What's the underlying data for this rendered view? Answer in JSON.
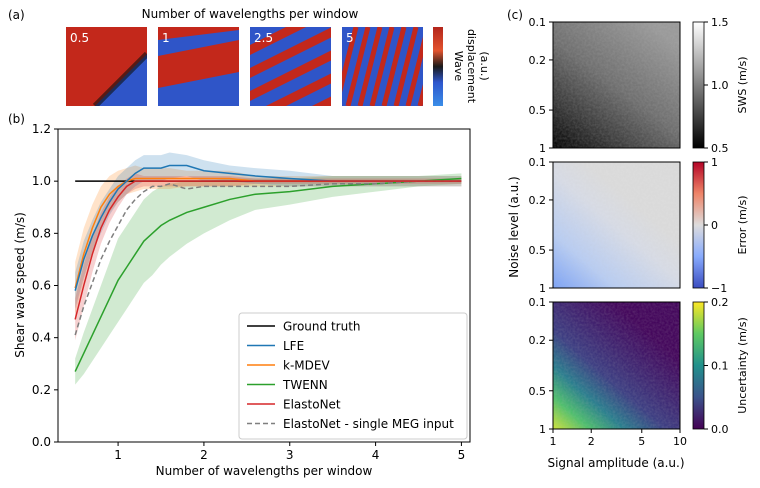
{
  "panel_labels": [
    "(a)",
    "(b)",
    "(c)"
  ],
  "colors": {
    "ground_truth": "#000000",
    "LFE": "#1f77b4",
    "k-MDEV": "#ff7f0e",
    "TWENN": "#2ca02c",
    "ElastoNet": "#d62728",
    "ElastoNet_single": "#7f7f7f",
    "wave_red": "#cc2a1c",
    "wave_blue": "#2f55c8"
  },
  "chart_data": [
    {
      "panel": "(a)",
      "type": "image-row",
      "title": "Number of wavelengths per window",
      "tiles": [
        "0.5",
        "1",
        "2.5",
        "5"
      ],
      "colorbar_label": [
        "Wave",
        "displacement",
        "(a.u.)"
      ]
    },
    {
      "panel": "(b)",
      "type": "line",
      "title": "",
      "xlabel": "Number of wavelengths per window",
      "ylabel": "Shear wave speed (m/s)",
      "xlim": [
        0.3,
        5.1
      ],
      "ylim": [
        0.0,
        1.2
      ],
      "xticks": [
        1,
        2,
        3,
        4,
        5
      ],
      "xtick_labels": [
        "1",
        "2",
        "3",
        "4",
        "5"
      ],
      "yticks": [
        0.0,
        0.2,
        0.4,
        0.6,
        0.8,
        1.0,
        1.2
      ],
      "ytick_labels": [
        "0.0",
        "0.2",
        "0.4",
        "0.6",
        "0.8",
        "1.0",
        "1.2"
      ],
      "x": [
        0.5,
        0.6,
        0.7,
        0.8,
        0.9,
        1.0,
        1.1,
        1.2,
        1.3,
        1.4,
        1.5,
        1.6,
        1.8,
        2.0,
        2.3,
        2.6,
        3.0,
        3.5,
        4.0,
        4.5,
        5.0
      ],
      "series": [
        {
          "key": "ground_truth",
          "name": "Ground truth",
          "style": "solid",
          "values": [
            1.0,
            1.0,
            1.0,
            1.0,
            1.0,
            1.0,
            1.0,
            1.0,
            1.0,
            1.0,
            1.0,
            1.0,
            1.0,
            1.0,
            1.0,
            1.0,
            1.0,
            1.0,
            1.0,
            1.0,
            1.0
          ]
        },
        {
          "key": "LFE",
          "name": "LFE",
          "style": "solid",
          "values": [
            0.58,
            0.7,
            0.79,
            0.86,
            0.92,
            0.97,
            1.0,
            1.03,
            1.05,
            1.05,
            1.05,
            1.06,
            1.06,
            1.04,
            1.03,
            1.02,
            1.01,
            1.0,
            1.0,
            1.0,
            1.0
          ],
          "band": [
            0.07,
            0.07,
            0.06,
            0.06,
            0.05,
            0.05,
            0.05,
            0.05,
            0.05,
            0.05,
            0.05,
            0.05,
            0.04,
            0.04,
            0.03,
            0.03,
            0.03,
            0.02,
            0.02,
            0.02,
            0.02
          ]
        },
        {
          "key": "k-MDEV",
          "name": "k-MDEV",
          "style": "solid",
          "values": [
            0.59,
            0.72,
            0.82,
            0.9,
            0.95,
            0.98,
            1.0,
            1.01,
            1.01,
            1.01,
            1.01,
            1.01,
            1.01,
            1.01,
            1.01,
            1.0,
            1.0,
            1.0,
            1.0,
            1.0,
            1.0
          ],
          "band": [
            0.1,
            0.1,
            0.09,
            0.08,
            0.07,
            0.06,
            0.05,
            0.05,
            0.04,
            0.04,
            0.04,
            0.04,
            0.03,
            0.03,
            0.03,
            0.02,
            0.02,
            0.02,
            0.02,
            0.02,
            0.02
          ]
        },
        {
          "key": "TWENN",
          "name": "TWENN",
          "style": "solid",
          "values": [
            0.27,
            0.34,
            0.41,
            0.48,
            0.55,
            0.62,
            0.67,
            0.72,
            0.77,
            0.8,
            0.83,
            0.85,
            0.88,
            0.9,
            0.93,
            0.95,
            0.96,
            0.98,
            0.99,
            1.0,
            1.01
          ],
          "band": [
            0.05,
            0.08,
            0.1,
            0.12,
            0.14,
            0.16,
            0.16,
            0.16,
            0.16,
            0.16,
            0.15,
            0.14,
            0.12,
            0.1,
            0.08,
            0.06,
            0.05,
            0.04,
            0.03,
            0.02,
            0.02
          ]
        },
        {
          "key": "ElastoNet",
          "name": "ElastoNet",
          "style": "solid",
          "values": [
            0.47,
            0.6,
            0.72,
            0.82,
            0.89,
            0.94,
            0.98,
            1.0,
            1.0,
            1.0,
            1.0,
            1.0,
            1.0,
            1.0,
            1.0,
            1.0,
            1.0,
            1.0,
            1.0,
            1.0,
            1.0
          ],
          "band": [
            0.08,
            0.08,
            0.07,
            0.06,
            0.05,
            0.04,
            0.03,
            0.03,
            0.02,
            0.02,
            0.02,
            0.02,
            0.02,
            0.02,
            0.02,
            0.01,
            0.01,
            0.01,
            0.01,
            0.01,
            0.01
          ]
        },
        {
          "key": "ElastoNet_single",
          "name": "ElastoNet - single MEG input",
          "style": "dashed",
          "values": [
            0.41,
            0.52,
            0.61,
            0.7,
            0.77,
            0.83,
            0.89,
            0.93,
            0.96,
            0.98,
            0.98,
            0.99,
            0.97,
            0.98,
            0.98,
            0.98,
            0.98,
            0.99,
            0.99,
            1.0,
            1.0
          ]
        }
      ],
      "legend": {
        "placement": "lower-right",
        "entries": [
          "Ground truth",
          "LFE",
          "k-MDEV",
          "TWENN",
          "ElastoNet",
          "ElastoNet - single MEG input"
        ]
      }
    },
    {
      "panel": "(c)",
      "type": "heatmap",
      "xlabel": "Signal amplitude (a.u.)",
      "ylabel": "Noise level (a.u.)",
      "xticks": [
        "1",
        "2",
        "5",
        "10"
      ],
      "yticks": [
        "0.1",
        "0.2",
        "0.5",
        "1"
      ],
      "maps": [
        {
          "name": "SWS",
          "colorbar_label": "SWS (m/s)",
          "colormap": "gray",
          "vmin": 0.5,
          "vmax": 1.5,
          "cbar_ticks": [
            "1.5",
            "1.0",
            "0.5"
          ]
        },
        {
          "name": "Error",
          "colorbar_label": "Error (m/s)",
          "colormap": "coolwarm",
          "vmin": -1,
          "vmax": 1,
          "cbar_ticks": [
            "1",
            "0",
            "−1"
          ]
        },
        {
          "name": "Uncertainty",
          "colorbar_label": "Uncertainty (m/s)",
          "colormap": "viridis",
          "vmin": 0.0,
          "vmax": 0.2,
          "cbar_ticks": [
            "0.2",
            "0.1",
            "0.0"
          ]
        }
      ]
    }
  ]
}
